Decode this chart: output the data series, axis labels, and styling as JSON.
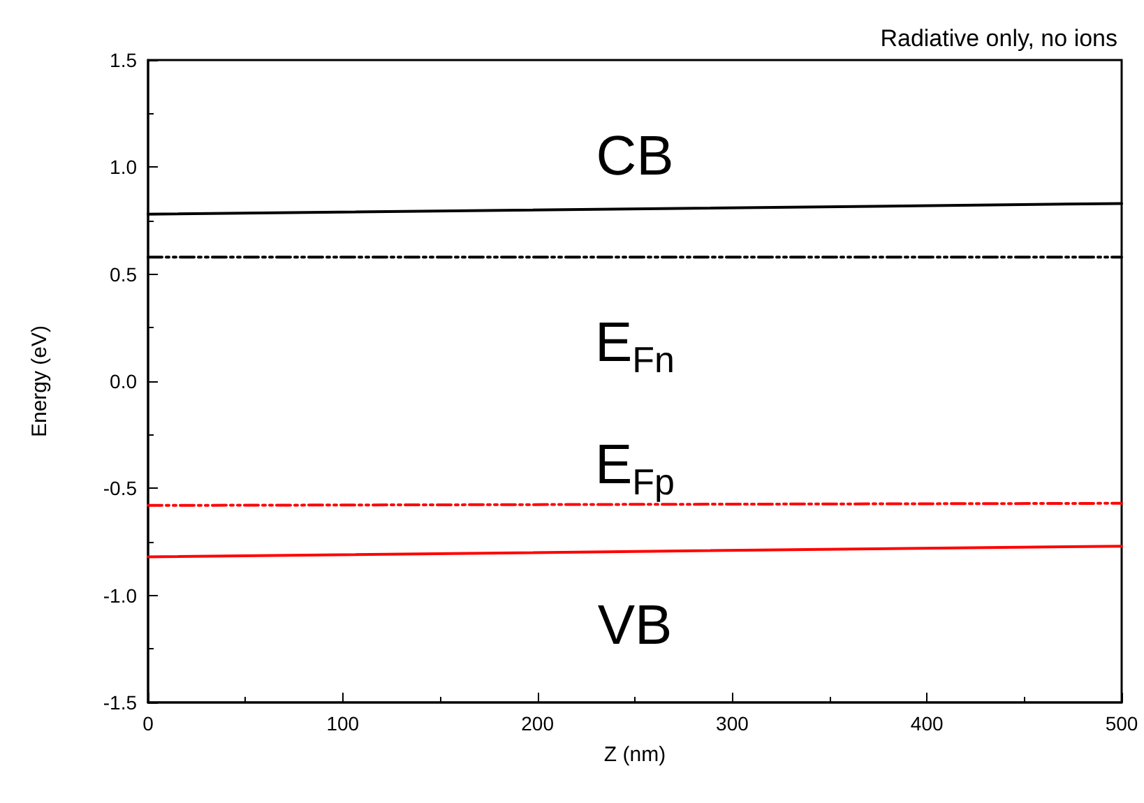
{
  "chart_data": {
    "type": "line",
    "title": "Radiative only, no ions",
    "xlabel": "Z (nm)",
    "ylabel": "Energy (eV)",
    "x": [
      0,
      500
    ],
    "series": [
      {
        "color": "#000000",
        "values": [
          0.78,
          0.83
        ],
        "line_style": "solid"
      },
      {
        "color": "#000000",
        "values": [
          0.58,
          0.58
        ],
        "line_style": "dashed"
      },
      {
        "color": "#ff0000",
        "values": [
          -0.58,
          -0.57
        ],
        "line_style": "dashed"
      },
      {
        "color": "#ff0000",
        "values": [
          -0.82,
          -0.77
        ],
        "line_style": "solid"
      }
    ],
    "xlim": [
      0,
      500
    ],
    "xticks": [
      0,
      100,
      200,
      300,
      400,
      500
    ],
    "ylim": [
      -1.5,
      1.5
    ],
    "yticks": [
      -1.5,
      {
        "value": -1,
        "label": "-1.0"
      },
      -0.5,
      {
        "value": 0,
        "label": "0.0"
      },
      0.5,
      {
        "value": 1,
        "label": "1.0"
      },
      1.5
    ],
    "grid": false,
    "marker": "none",
    "annotations": [
      "CB",
      "E$_{Fn}$",
      "E$_{Fp}$",
      "VB"
    ]
  }
}
